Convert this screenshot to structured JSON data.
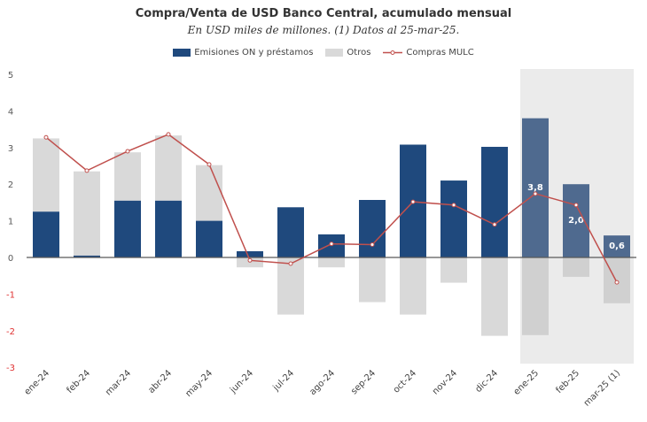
{
  "chart_data": {
    "type": "bar",
    "title": "Compra/Venta de USD Banco Central, acumulado mensual",
    "subtitle": "En USD miles de millones. (1) Datos al 25-mar-25.",
    "categories": [
      "ene-24",
      "feb-24",
      "mar-24",
      "abr-24",
      "may-24",
      "jun-24",
      "jul-24",
      "ago-24",
      "sep-24",
      "oct-24",
      "nov-24",
      "dic-24",
      "ene-25",
      "feb-25",
      "mar-25 (1)"
    ],
    "ylim": [
      -3,
      5
    ],
    "yticks": [
      5,
      4,
      3,
      2,
      1,
      0,
      -1,
      -2,
      -3
    ],
    "grid": false,
    "legend_position": "top",
    "highlight_range": [
      "ene-25",
      "mar-25 (1)"
    ],
    "series": [
      {
        "name": "Emisiones ON y préstamos",
        "kind": "bar",
        "color": "#1f497d",
        "values": [
          1.25,
          0.05,
          1.55,
          1.55,
          1.0,
          0.17,
          1.37,
          0.63,
          1.57,
          3.08,
          2.1,
          3.02,
          3.8,
          2.0,
          0.6
        ]
      },
      {
        "name": "Otros",
        "kind": "bar",
        "color": "#d9d9d9",
        "values": [
          2.0,
          2.3,
          1.32,
          1.78,
          1.52,
          -0.27,
          -1.56,
          -0.27,
          -1.22,
          -1.56,
          -0.69,
          -2.14,
          -2.12,
          -0.53,
          -1.25
        ]
      },
      {
        "name": "Compras MULC",
        "kind": "line",
        "color": "#c0504d",
        "values": [
          3.28,
          2.37,
          2.9,
          3.36,
          2.54,
          -0.08,
          -0.17,
          0.37,
          0.35,
          1.52,
          1.43,
          0.9,
          1.74,
          1.43,
          -0.68
        ]
      }
    ],
    "data_labels": {
      "ene-25": "3,8",
      "feb-25": "2,0",
      "mar-25 (1)": "0,6"
    }
  }
}
